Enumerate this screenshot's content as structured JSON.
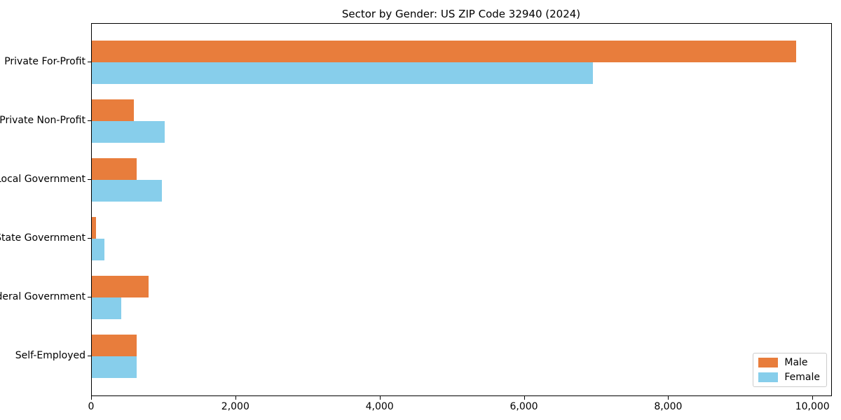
{
  "chart_data": {
    "type": "bar",
    "orientation": "horizontal",
    "title": "Sector by Gender: US ZIP Code 32940 (2024)",
    "categories": [
      "Private For-Profit",
      "Private Non-Profit",
      "Local Government",
      "State Government",
      "Federal Government",
      "Self-Employed"
    ],
    "series": [
      {
        "name": "Male",
        "color": "#E87D3C",
        "values": [
          9780,
          580,
          620,
          60,
          785,
          620
        ]
      },
      {
        "name": "Female",
        "color": "#87CEEB",
        "values": [
          6960,
          1010,
          975,
          180,
          410,
          625
        ]
      }
    ],
    "xlabel": "",
    "ylabel": "",
    "xlim": [
      0,
      10270
    ],
    "xticks": [
      0,
      2000,
      4000,
      6000,
      8000,
      10000
    ],
    "xtick_labels": [
      "0",
      "2,000",
      "4,000",
      "6,000",
      "8,000",
      "10,000"
    ],
    "grid": false,
    "legend": {
      "position": "lower right"
    }
  },
  "colors": {
    "male": "#E87D3C",
    "female": "#87CEEB",
    "spine": "#000000",
    "text": "#000000",
    "legend_border": "#cccccc",
    "background": "#ffffff"
  }
}
